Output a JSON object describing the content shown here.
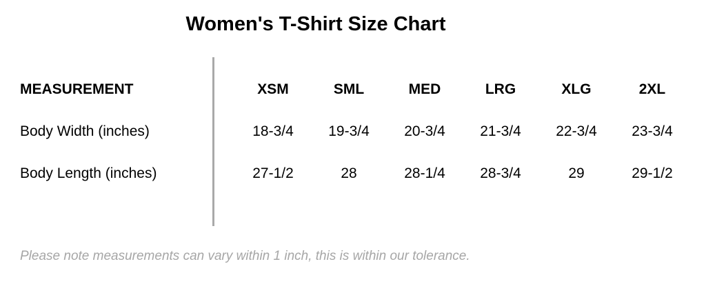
{
  "title": "Women's T-Shirt Size Chart",
  "table": {
    "header_label": "MEASUREMENT",
    "sizes": [
      "XSM",
      "SML",
      "MED",
      "LRG",
      "XLG",
      "2XL"
    ],
    "rows": [
      {
        "label": "Body Width (inches)",
        "values": [
          "18-3/4",
          "19-3/4",
          "20-3/4",
          "21-3/4",
          "22-3/4",
          "23-3/4"
        ]
      },
      {
        "label": "Body Length (inches)",
        "values": [
          "27-1/2",
          "28",
          "28-1/4",
          "28-3/4",
          "29",
          "29-1/2"
        ]
      }
    ]
  },
  "note": "Please note measurements can vary within 1 inch, this is within our tolerance.",
  "colors": {
    "text": "#000000",
    "divider": "#a9a9a9",
    "note": "#a6a6a6",
    "background": "#ffffff"
  }
}
